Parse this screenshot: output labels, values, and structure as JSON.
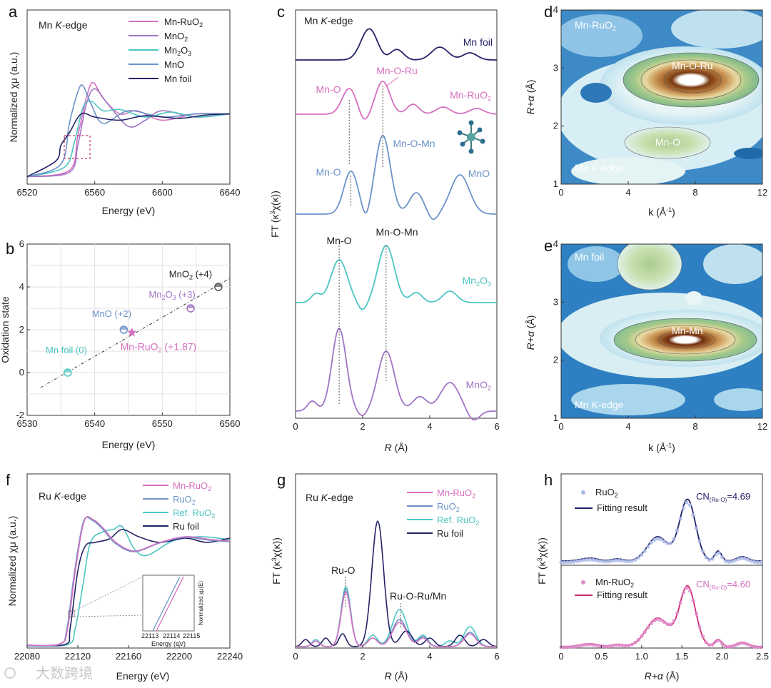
{
  "colors": {
    "pink": "#d66fc0",
    "purple": "#a174c4",
    "teal": "#4cc5c2",
    "blue": "#6b93c9",
    "navy": "#222266",
    "crimson": "#cc2a6e"
  },
  "watermark": "大数跨境",
  "chart_data": [
    {
      "panel": "a",
      "type": "line",
      "title": "Mn K-edge",
      "xlabel": "Energy (eV)",
      "ylabel": "Normalized χμ (a.u.)",
      "xlim": [
        6520,
        6640
      ],
      "xticks": [
        "6520",
        "6560",
        "6600",
        "6640"
      ],
      "legend": [
        "Mn-RuO2",
        "MnO2",
        "Mn2O3",
        "MnO",
        "Mn foil"
      ],
      "legend_sub": [
        "2",
        "2",
        "2 3",
        "",
        ""
      ],
      "series": [
        {
          "name": "Mn-RuO2",
          "x": [
            6520,
            6545,
            6550,
            6555,
            6559,
            6565,
            6575,
            6585,
            6600,
            6620,
            6640
          ],
          "y": [
            0.05,
            0.15,
            0.7,
            1.3,
            1.55,
            1.3,
            1.05,
            1.1,
            0.95,
            1.05,
            1.05
          ]
        },
        {
          "name": "MnO2",
          "x": [
            6520,
            6545,
            6550,
            6555,
            6560,
            6568,
            6580,
            6590,
            6600,
            6620,
            6640
          ],
          "y": [
            0.05,
            0.12,
            0.55,
            1.2,
            1.45,
            1.2,
            0.85,
            0.95,
            1.1,
            1.0,
            1.05
          ]
        },
        {
          "name": "Mn2O3",
          "x": [
            6520,
            6542,
            6548,
            6553,
            6558,
            6565,
            6575,
            6590,
            6605,
            6620,
            6640
          ],
          "y": [
            0.05,
            0.2,
            0.6,
            1.15,
            1.25,
            1.1,
            1.12,
            1.0,
            1.08,
            1.0,
            1.05
          ]
        },
        {
          "name": "MnO",
          "x": [
            6520,
            6540,
            6545,
            6550,
            6553,
            6558,
            6565,
            6580,
            6600,
            6620,
            6640
          ],
          "y": [
            0.05,
            0.25,
            0.9,
            1.4,
            1.5,
            1.2,
            0.9,
            1.1,
            1.0,
            1.05,
            1.05
          ]
        },
        {
          "name": "Mn foil",
          "x": [
            6520,
            6537,
            6540,
            6545,
            6552,
            6560,
            6575,
            6590,
            6610,
            6625,
            6640
          ],
          "y": [
            0.05,
            0.3,
            0.55,
            0.75,
            1.05,
            1.0,
            0.95,
            1.02,
            0.98,
            1.03,
            1.05
          ]
        }
      ]
    },
    {
      "panel": "b",
      "type": "scatter",
      "xlabel": "Energy (eV)",
      "ylabel": "Oxidation state",
      "xlim": [
        6530,
        6560
      ],
      "ylim": [
        -2,
        6
      ],
      "xticks": [
        "6530",
        "6540",
        "6550",
        "6560"
      ],
      "yticks": [
        "-2",
        "0",
        "2",
        "4",
        "6"
      ],
      "points": [
        {
          "name": "Mn foil (0)",
          "x": 6536,
          "y": 0
        },
        {
          "name": "MnO (+2)",
          "x": 6544.3,
          "y": 2
        },
        {
          "name": "Mn2O3 (+3)",
          "x": 6554.2,
          "y": 3
        },
        {
          "name": "MnO2 (+4)",
          "x": 6558.3,
          "y": 4
        },
        {
          "name": "Mn-RuO2 (+1.87)",
          "x": 6545.5,
          "y": 1.87
        }
      ],
      "labels": {
        "foil": "Mn foil (0)",
        "mno": "MnO (+2)",
        "mn2o3_a": "Mn",
        "mn2o3_sub1": "2",
        "mn2o3_b": "O",
        "mn2o3_sub2": "3",
        "mn2o3_c": " (+3)",
        "mno2_a": "MnO",
        "mno2_sub": "2",
        "mno2_c": " (+4)",
        "mnru_a": "Mn-RuO",
        "mnru_sub": "2",
        "mnru_c": " (+1.87)"
      }
    },
    {
      "panel": "c",
      "type": "line",
      "title": "Mn K-edge",
      "xlabel": "R (Å)",
      "ylabel": "FT (κ³χ(κ))",
      "xlim": [
        0,
        6
      ],
      "xticks": [
        "0",
        "2",
        "4",
        "6"
      ],
      "series": [
        "Mn foil",
        "Mn-RuO2",
        "MnO",
        "Mn2O3",
        "MnO2"
      ],
      "annotations": [
        "Mn-O",
        "Mn-O-Ru",
        "Mn-O",
        "Mn-O-Mn",
        "Mn-O",
        "Mn-O-Mn"
      ]
    },
    {
      "panel": "d",
      "type": "heatmap",
      "title": "Mn-RuO2",
      "subtitle": "Mn K-edge",
      "xlabel": "k (Å⁻¹)",
      "ylabel": "R+α (Å)",
      "xticks": [
        "0",
        "4",
        "8",
        "12"
      ],
      "yticks": [
        "1",
        "2",
        "3",
        "4"
      ],
      "peaks": [
        "Mn-O-Ru",
        "Mn-O"
      ]
    },
    {
      "panel": "e",
      "type": "heatmap",
      "title": "Mn foil",
      "subtitle": "Mn K-edge",
      "xlabel": "k (Å⁻¹)",
      "ylabel": "R+α (Å)",
      "xticks": [
        "0",
        "4",
        "8",
        "12"
      ],
      "yticks": [
        "1",
        "2",
        "3",
        "4"
      ],
      "peaks": [
        "Mn-Mn"
      ]
    },
    {
      "panel": "f",
      "type": "line",
      "title": "Ru K-edge",
      "xlabel": "Energy (eV)",
      "ylabel": "Normalized χμ (a.u.)",
      "xlim": [
        22080,
        22240
      ],
      "xticks": [
        "22080",
        "22120",
        "22160",
        "22200",
        "22240"
      ],
      "legend": [
        "Mn-RuO2",
        "RuO2",
        "Ref. RuO2",
        "Ru foil"
      ],
      "inset": {
        "ylabel": "Normalized χμ(E)",
        "xlabel": "Energy (eV)",
        "xticks": [
          "22113",
          "22114",
          "22115"
        ]
      }
    },
    {
      "panel": "g",
      "type": "line",
      "title": "Ru K-edge",
      "xlabel": "R (Å)",
      "ylabel": "FT (κ³χ(κ))",
      "xlim": [
        0,
        6
      ],
      "xticks": [
        "0",
        "2",
        "4",
        "6"
      ],
      "legend": [
        "Mn-RuO2",
        "RuO2",
        "Ref. RuO2",
        "Ru foil"
      ],
      "annotations": [
        "Ru-O",
        "Ru-O-Ru/Mn"
      ]
    },
    {
      "panel": "h",
      "type": "line",
      "xlabel": "R+α (Å)",
      "ylabel": "FT (κ³χ(κ))",
      "xlim": [
        0,
        2.5
      ],
      "xticks": [
        "0",
        "0.5",
        "1.0",
        "1.5",
        "2.0",
        "2.5"
      ],
      "legend": [
        "RuO2",
        "Fitting result",
        "Mn-RuO2",
        "Fitting result"
      ],
      "cn": [
        "CN(Ru-O)=4.69",
        "CN(Ru-O)=4.60"
      ],
      "cn_values": [
        4.69,
        4.6
      ]
    }
  ]
}
